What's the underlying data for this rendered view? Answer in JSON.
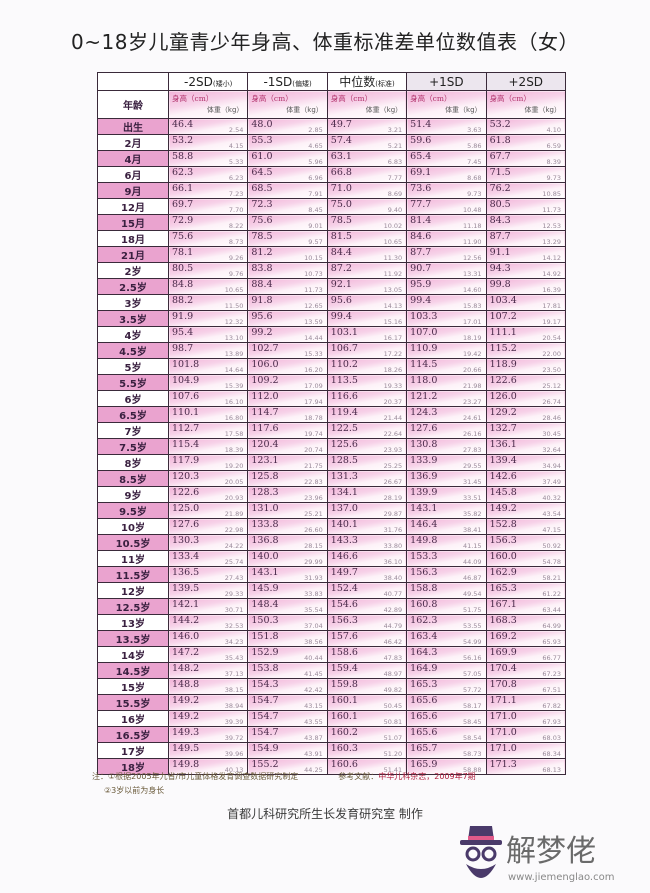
{
  "title": "0~18岁儿童青少年身高、体重标准差单位数值表（女）",
  "columns": [
    {
      "label": "-2SD",
      "note": "(矮小)"
    },
    {
      "label": "-1SD",
      "note": "(偏矮)"
    },
    {
      "label": "中位数",
      "note": "(标准)"
    },
    {
      "label": "+1SD",
      "note": ""
    },
    {
      "label": "+2SD",
      "note": ""
    }
  ],
  "age_header": "年龄",
  "height_label": "身高（cm）",
  "weight_label": "体重（kg）",
  "rows": [
    {
      "age": "出生",
      "v": [
        [
          "46.4",
          "2.54"
        ],
        [
          "48.0",
          "2.85"
        ],
        [
          "49.7",
          "3.21"
        ],
        [
          "51.4",
          "3.63"
        ],
        [
          "53.2",
          "4.10"
        ]
      ]
    },
    {
      "age": "2月",
      "v": [
        [
          "53.2",
          "4.15"
        ],
        [
          "55.3",
          "4.65"
        ],
        [
          "57.4",
          "5.21"
        ],
        [
          "59.6",
          "5.86"
        ],
        [
          "61.8",
          "6.59"
        ]
      ]
    },
    {
      "age": "4月",
      "v": [
        [
          "58.8",
          "5.33"
        ],
        [
          "61.0",
          "5.96"
        ],
        [
          "63.1",
          "6.83"
        ],
        [
          "65.4",
          "7.45"
        ],
        [
          "67.7",
          "8.39"
        ]
      ]
    },
    {
      "age": "6月",
      "v": [
        [
          "62.3",
          "6.23"
        ],
        [
          "64.5",
          "6.96"
        ],
        [
          "66.8",
          "7.77"
        ],
        [
          "69.1",
          "8.68"
        ],
        [
          "71.5",
          "9.73"
        ]
      ]
    },
    {
      "age": "9月",
      "v": [
        [
          "66.1",
          "7.23"
        ],
        [
          "68.5",
          "7.91"
        ],
        [
          "71.0",
          "8.69"
        ],
        [
          "73.6",
          "9.73"
        ],
        [
          "76.2",
          "10.85"
        ]
      ]
    },
    {
      "age": "12月",
      "v": [
        [
          "69.7",
          "7.70"
        ],
        [
          "72.3",
          "8.45"
        ],
        [
          "75.0",
          "9.40"
        ],
        [
          "77.7",
          "10.48"
        ],
        [
          "80.5",
          "11.73"
        ]
      ]
    },
    {
      "age": "15月",
      "v": [
        [
          "72.9",
          "8.22"
        ],
        [
          "75.6",
          "9.01"
        ],
        [
          "78.5",
          "10.02"
        ],
        [
          "81.4",
          "11.18"
        ],
        [
          "84.3",
          "12.53"
        ]
      ]
    },
    {
      "age": "18月",
      "v": [
        [
          "75.6",
          "8.73"
        ],
        [
          "78.5",
          "9.57"
        ],
        [
          "81.5",
          "10.65"
        ],
        [
          "84.6",
          "11.90"
        ],
        [
          "87.7",
          "13.29"
        ]
      ]
    },
    {
      "age": "21月",
      "v": [
        [
          "78.1",
          "9.26"
        ],
        [
          "81.2",
          "10.15"
        ],
        [
          "84.4",
          "11.30"
        ],
        [
          "87.7",
          "12.56"
        ],
        [
          "91.1",
          "14.12"
        ]
      ]
    },
    {
      "age": "2岁",
      "v": [
        [
          "80.5",
          "9.76"
        ],
        [
          "83.8",
          "10.73"
        ],
        [
          "87.2",
          "11.92"
        ],
        [
          "90.7",
          "13.31"
        ],
        [
          "94.3",
          "14.92"
        ]
      ]
    },
    {
      "age": "2.5岁",
      "v": [
        [
          "84.8",
          "10.65"
        ],
        [
          "88.4",
          "11.73"
        ],
        [
          "92.1",
          "13.05"
        ],
        [
          "95.9",
          "14.60"
        ],
        [
          "99.8",
          "16.39"
        ]
      ]
    },
    {
      "age": "3岁",
      "v": [
        [
          "88.2",
          "11.50"
        ],
        [
          "91.8",
          "12.65"
        ],
        [
          "95.6",
          "14.13"
        ],
        [
          "99.4",
          "15.83"
        ],
        [
          "103.4",
          "17.81"
        ]
      ]
    },
    {
      "age": "3.5岁",
      "v": [
        [
          "91.9",
          "12.32"
        ],
        [
          "95.6",
          "13.59"
        ],
        [
          "99.4",
          "15.16"
        ],
        [
          "103.3",
          "17.01"
        ],
        [
          "107.2",
          "19.17"
        ]
      ]
    },
    {
      "age": "4岁",
      "v": [
        [
          "95.4",
          "13.10"
        ],
        [
          "99.2",
          "14.44"
        ],
        [
          "103.1",
          "16.17"
        ],
        [
          "107.0",
          "18.19"
        ],
        [
          "111.1",
          "20.54"
        ]
      ]
    },
    {
      "age": "4.5岁",
      "v": [
        [
          "98.7",
          "13.89"
        ],
        [
          "102.7",
          "15.33"
        ],
        [
          "106.7",
          "17.22"
        ],
        [
          "110.9",
          "19.42"
        ],
        [
          "115.2",
          "22.00"
        ]
      ]
    },
    {
      "age": "5岁",
      "v": [
        [
          "101.8",
          "14.64"
        ],
        [
          "106.0",
          "16.20"
        ],
        [
          "110.2",
          "18.26"
        ],
        [
          "114.5",
          "20.66"
        ],
        [
          "118.9",
          "23.50"
        ]
      ]
    },
    {
      "age": "5.5岁",
      "v": [
        [
          "104.9",
          "15.39"
        ],
        [
          "109.2",
          "17.09"
        ],
        [
          "113.5",
          "19.33"
        ],
        [
          "118.0",
          "21.98"
        ],
        [
          "122.6",
          "25.12"
        ]
      ]
    },
    {
      "age": "6岁",
      "v": [
        [
          "107.6",
          "16.10"
        ],
        [
          "112.0",
          "17.94"
        ],
        [
          "116.6",
          "20.37"
        ],
        [
          "121.2",
          "23.27"
        ],
        [
          "126.0",
          "26.74"
        ]
      ]
    },
    {
      "age": "6.5岁",
      "v": [
        [
          "110.1",
          "16.80"
        ],
        [
          "114.7",
          "18.78"
        ],
        [
          "119.4",
          "21.44"
        ],
        [
          "124.3",
          "24.61"
        ],
        [
          "129.2",
          "28.46"
        ]
      ]
    },
    {
      "age": "7岁",
      "v": [
        [
          "112.7",
          "17.58"
        ],
        [
          "117.6",
          "19.74"
        ],
        [
          "122.5",
          "22.64"
        ],
        [
          "127.6",
          "26.16"
        ],
        [
          "132.7",
          "30.45"
        ]
      ]
    },
    {
      "age": "7.5岁",
      "v": [
        [
          "115.4",
          "18.39"
        ],
        [
          "120.4",
          "20.74"
        ],
        [
          "125.6",
          "23.93"
        ],
        [
          "130.8",
          "27.83"
        ],
        [
          "136.1",
          "32.64"
        ]
      ]
    },
    {
      "age": "8岁",
      "v": [
        [
          "117.9",
          "19.20"
        ],
        [
          "123.1",
          "21.75"
        ],
        [
          "128.5",
          "25.25"
        ],
        [
          "133.9",
          "29.55"
        ],
        [
          "139.4",
          "34.94"
        ]
      ]
    },
    {
      "age": "8.5岁",
      "v": [
        [
          "120.3",
          "20.05"
        ],
        [
          "125.8",
          "22.83"
        ],
        [
          "131.3",
          "26.67"
        ],
        [
          "136.9",
          "31.45"
        ],
        [
          "142.6",
          "37.49"
        ]
      ]
    },
    {
      "age": "9岁",
      "v": [
        [
          "122.6",
          "20.93"
        ],
        [
          "128.3",
          "23.96"
        ],
        [
          "134.1",
          "28.19"
        ],
        [
          "139.9",
          "33.51"
        ],
        [
          "145.8",
          "40.32"
        ]
      ]
    },
    {
      "age": "9.5岁",
      "v": [
        [
          "125.0",
          "21.89"
        ],
        [
          "131.0",
          "25.21"
        ],
        [
          "137.0",
          "29.87"
        ],
        [
          "143.1",
          "35.82"
        ],
        [
          "149.2",
          "43.54"
        ]
      ]
    },
    {
      "age": "10岁",
      "v": [
        [
          "127.6",
          "22.98"
        ],
        [
          "133.8",
          "26.60"
        ],
        [
          "140.1",
          "31.76"
        ],
        [
          "146.4",
          "38.41"
        ],
        [
          "152.8",
          "47.15"
        ]
      ]
    },
    {
      "age": "10.5岁",
      "v": [
        [
          "130.3",
          "24.22"
        ],
        [
          "136.8",
          "28.15"
        ],
        [
          "143.3",
          "33.80"
        ],
        [
          "149.8",
          "41.15"
        ],
        [
          "156.3",
          "50.92"
        ]
      ]
    },
    {
      "age": "11岁",
      "v": [
        [
          "133.4",
          "25.74"
        ],
        [
          "140.0",
          "29.99"
        ],
        [
          "146.6",
          "36.10"
        ],
        [
          "153.3",
          "44.09"
        ],
        [
          "160.0",
          "54.78"
        ]
      ]
    },
    {
      "age": "11.5岁",
      "v": [
        [
          "136.5",
          "27.43"
        ],
        [
          "143.1",
          "31.93"
        ],
        [
          "149.7",
          "38.40"
        ],
        [
          "156.3",
          "46.87"
        ],
        [
          "162.9",
          "58.21"
        ]
      ]
    },
    {
      "age": "12岁",
      "v": [
        [
          "139.5",
          "29.33"
        ],
        [
          "145.9",
          "33.83"
        ],
        [
          "152.4",
          "40.77"
        ],
        [
          "158.8",
          "49.54"
        ],
        [
          "165.3",
          "61.22"
        ]
      ]
    },
    {
      "age": "12.5岁",
      "v": [
        [
          "142.1",
          "30.71"
        ],
        [
          "148.4",
          "35.54"
        ],
        [
          "154.6",
          "42.89"
        ],
        [
          "160.8",
          "51.75"
        ],
        [
          "167.1",
          "63.44"
        ]
      ]
    },
    {
      "age": "13岁",
      "v": [
        [
          "144.2",
          "32.53"
        ],
        [
          "150.3",
          "37.04"
        ],
        [
          "156.3",
          "44.79"
        ],
        [
          "162.3",
          "53.55"
        ],
        [
          "168.3",
          "64.99"
        ]
      ]
    },
    {
      "age": "13.5岁",
      "v": [
        [
          "146.0",
          "34.23"
        ],
        [
          "151.8",
          "38.56"
        ],
        [
          "157.6",
          "46.42"
        ],
        [
          "163.4",
          "54.99"
        ],
        [
          "169.2",
          "65.93"
        ]
      ]
    },
    {
      "age": "14岁",
      "v": [
        [
          "147.2",
          "35.43"
        ],
        [
          "152.9",
          "40.44"
        ],
        [
          "158.6",
          "47.83"
        ],
        [
          "164.3",
          "56.16"
        ],
        [
          "169.9",
          "66.77"
        ]
      ]
    },
    {
      "age": "14.5岁",
      "v": [
        [
          "148.2",
          "37.13"
        ],
        [
          "153.8",
          "41.45"
        ],
        [
          "159.4",
          "48.97"
        ],
        [
          "164.9",
          "57.05"
        ],
        [
          "170.4",
          "67.23"
        ]
      ]
    },
    {
      "age": "15岁",
      "v": [
        [
          "148.8",
          "38.15"
        ],
        [
          "154.3",
          "42.42"
        ],
        [
          "159.8",
          "49.82"
        ],
        [
          "165.3",
          "57.72"
        ],
        [
          "170.8",
          "67.51"
        ]
      ]
    },
    {
      "age": "15.5岁",
      "v": [
        [
          "149.2",
          "38.94"
        ],
        [
          "154.7",
          "43.15"
        ],
        [
          "160.1",
          "50.45"
        ],
        [
          "165.6",
          "58.17"
        ],
        [
          "171.1",
          "67.82"
        ]
      ]
    },
    {
      "age": "16岁",
      "v": [
        [
          "149.2",
          "39.39"
        ],
        [
          "154.7",
          "43.55"
        ],
        [
          "160.1",
          "50.81"
        ],
        [
          "165.6",
          "58.45"
        ],
        [
          "171.0",
          "67.93"
        ]
      ]
    },
    {
      "age": "16.5岁",
      "v": [
        [
          "149.3",
          "39.72"
        ],
        [
          "154.7",
          "43.87"
        ],
        [
          "160.2",
          "51.07"
        ],
        [
          "165.6",
          "58.54"
        ],
        [
          "171.0",
          "68.03"
        ]
      ]
    },
    {
      "age": "17岁",
      "v": [
        [
          "149.5",
          "39.96"
        ],
        [
          "154.9",
          "43.91"
        ],
        [
          "160.3",
          "51.20"
        ],
        [
          "165.7",
          "58.73"
        ],
        [
          "171.0",
          "68.34"
        ]
      ]
    },
    {
      "age": "18岁",
      "v": [
        [
          "149.8",
          "40.13"
        ],
        [
          "155.2",
          "44.25"
        ],
        [
          "160.6",
          "51.41"
        ],
        [
          "165.9",
          "58.88"
        ],
        [
          "171.3",
          "68.13"
        ]
      ]
    }
  ],
  "notes": {
    "prefix": "注：",
    "note1": "①根据2005年九省/市儿童体格发育调查数据研究制定",
    "ref_label": "参考文献：",
    "ref_value": "中华儿科杂志，2009年7期",
    "note2": "②3岁以前为身长"
  },
  "maker": "首都儿科研究所生长发育研究室 制作",
  "watermark": {
    "text": "解梦佬",
    "url": "www.jiemenglao.com"
  },
  "colors": {
    "row_pink": "#eaa3cf",
    "cell_pink": "#f2b3d8"
  }
}
